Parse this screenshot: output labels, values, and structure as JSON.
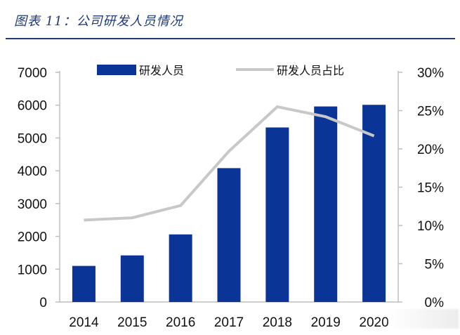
{
  "caption": "图表 11：公司研发人员情况",
  "colors": {
    "bar": "#0a3597",
    "line": "#c8c8c8",
    "title": "#1f3a7a"
  },
  "chart_data": {
    "type": "bar+line",
    "title": "图表 11：公司研发人员情况",
    "categories": [
      "2014",
      "2015",
      "2016",
      "2017",
      "2018",
      "2019",
      "2020"
    ],
    "series": [
      {
        "name": "研发人员",
        "type": "bar",
        "axis": "left",
        "values": [
          1100,
          1420,
          2060,
          4080,
          5320,
          5960,
          6010
        ]
      },
      {
        "name": "研发人员占比",
        "type": "line",
        "axis": "right",
        "values": [
          10.7,
          11.0,
          12.6,
          19.7,
          25.5,
          24.2,
          21.7
        ]
      }
    ],
    "y_left": {
      "min": 0,
      "max": 7000,
      "ticks": [
        "0",
        "1000",
        "2000",
        "3000",
        "4000",
        "5000",
        "6000",
        "7000"
      ]
    },
    "y_right": {
      "min": 0,
      "max": 30,
      "ticks": [
        "0%",
        "5%",
        "10%",
        "15%",
        "20%",
        "25%",
        "30%"
      ]
    },
    "legend": {
      "placement": "top",
      "items": [
        "研发人员",
        "研发人员占比"
      ]
    },
    "grid": false
  }
}
